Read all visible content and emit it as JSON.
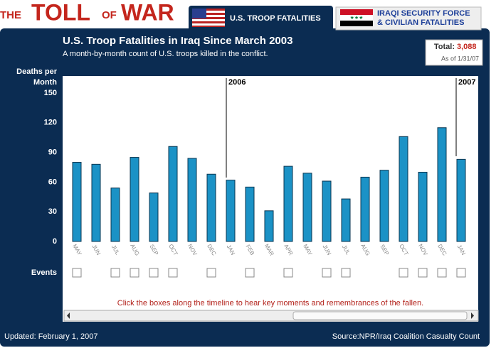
{
  "header": {
    "logo": [
      "THE",
      "TOLL",
      "OF",
      "WAR"
    ],
    "tabs": [
      "U.S. TROOP FATALITIES",
      "IRAQI SECURITY FORCE & CIVILIAN FATALITIES"
    ]
  },
  "total": {
    "label": "Total:",
    "value": "3,088",
    "as_of": "As of 1/31/07"
  },
  "chart_data": {
    "type": "bar",
    "title": "U.S. Troop Fatalities in Iraq Since March 2003",
    "subtitle": "A month-by-month count of U.S. troops killed in the conflict.",
    "y_label": "Deaths per Month",
    "categories": [
      "MAY",
      "JUN",
      "JUL",
      "AUG",
      "SEP",
      "OCT",
      "NOV",
      "DEC",
      "JAN",
      "FEB",
      "MAR",
      "APR",
      "MAY",
      "JUN",
      "JUL",
      "AUG",
      "SEP",
      "OCT",
      "NOV",
      "DEC",
      "JAN"
    ],
    "values": [
      80,
      78,
      54,
      85,
      49,
      96,
      84,
      68,
      62,
      55,
      31,
      76,
      69,
      61,
      43,
      65,
      72,
      106,
      70,
      115,
      83
    ],
    "color": "#1b92c6",
    "ylim": [
      0,
      150
    ],
    "yticks": [
      0,
      30,
      60,
      90,
      120,
      150
    ],
    "grid": false,
    "annotations": [
      "2006",
      "2007"
    ],
    "events_label": "Events",
    "instruction": "Click the boxes along the timeline to hear key moments and remembrances of the fallen."
  },
  "footer": {
    "updated": "Updated: February 1, 2007",
    "source": "Source:NPR/Iraq Coalition Casualty Count"
  }
}
